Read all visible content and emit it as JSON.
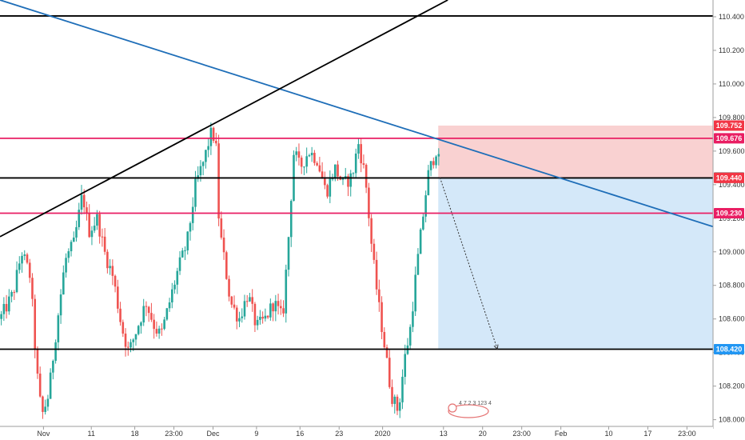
{
  "chart_data": {
    "type": "candlestick",
    "y_range": [
      107.96,
      110.5
    ],
    "x_range": [
      0,
      82
    ],
    "price_ticks": [
      "110.400",
      "110.200",
      "110.000",
      "109.800",
      "109.600",
      "109.400",
      "109.200",
      "109.000",
      "108.800",
      "108.600",
      "108.400",
      "108.200",
      "108.000"
    ],
    "price_tick_values": [
      110.4,
      110.2,
      110.0,
      109.8,
      109.6,
      109.4,
      109.2,
      109.0,
      108.8,
      108.6,
      108.4,
      108.2,
      108.0
    ],
    "time_ticks": [
      {
        "label": "Nov",
        "x": 5
      },
      {
        "label": "11",
        "x": 10.5
      },
      {
        "label": "18",
        "x": 15.5
      },
      {
        "label": "23:00",
        "x": 20
      },
      {
        "label": "Dec",
        "x": 24.5
      },
      {
        "label": "9",
        "x": 29.5
      },
      {
        "label": "16",
        "x": 34.5
      },
      {
        "label": "23",
        "x": 39
      },
      {
        "label": "2020",
        "x": 44
      },
      {
        "label": "13",
        "x": 51
      },
      {
        "label": "20",
        "x": 55.5
      },
      {
        "label": "23:00",
        "x": 60
      },
      {
        "label": "Feb",
        "x": 64.5
      },
      {
        "label": "10",
        "x": 70
      },
      {
        "label": "17",
        "x": 74.5
      },
      {
        "label": "23:00",
        "x": 79
      }
    ],
    "horizontal_lines": [
      {
        "price": 110.405,
        "color": "#000000"
      },
      {
        "price": 109.676,
        "color": "#e91e63"
      },
      {
        "price": 109.44,
        "color": "#000000"
      },
      {
        "price": 109.23,
        "color": "#e91e63"
      },
      {
        "price": 108.42,
        "color": "#000000"
      }
    ],
    "trend_lines": [
      {
        "from": [
          0,
          110.5
        ],
        "to": [
          82,
          109.15
        ],
        "color": "#1e6eb8"
      },
      {
        "from": [
          0,
          109.09
        ],
        "to": [
          51.5,
          110.5
        ],
        "color": "#000000"
      }
    ],
    "position": {
      "entry_x": 50.4,
      "end_x": 82,
      "entry": 109.442,
      "stop": 109.752,
      "target": 108.42,
      "stop_zone_color": "#f8c9c9",
      "target_zone_color": "#cfe5f8",
      "projection_from": [
        50.6,
        109.442
      ],
      "projection_to": [
        57.2,
        108.42
      ]
    },
    "price_tags": [
      {
        "label": "109.752",
        "price": 109.752,
        "color": "#f23645"
      },
      {
        "label": "109.676",
        "price": 109.676,
        "color": "#e91e63"
      },
      {
        "label": "109.442",
        "price": 109.442,
        "color": "#4a4a4a"
      },
      {
        "label": "109.440",
        "price": 109.44,
        "color": "#f23645"
      },
      {
        "label": "109.230",
        "price": 109.23,
        "color": "#e91e63"
      },
      {
        "label": "108.420",
        "price": 108.42,
        "color": "#2196f3"
      }
    ],
    "candle_colors": {
      "up": "#26a69a",
      "down": "#ef5350"
    },
    "path": [
      [
        0,
        108.6
      ],
      [
        1.5,
        108.75
      ],
      [
        2.5,
        109.0
      ],
      [
        3.5,
        108.85
      ],
      [
        4.2,
        108.3
      ],
      [
        4.8,
        108.02
      ],
      [
        5.6,
        108.15
      ],
      [
        6.5,
        108.55
      ],
      [
        7.5,
        108.95
      ],
      [
        8.5,
        109.05
      ],
      [
        9.5,
        109.35
      ],
      [
        10.2,
        109.12
      ],
      [
        11.2,
        109.2
      ],
      [
        12,
        109.0
      ],
      [
        13,
        108.85
      ],
      [
        14,
        108.55
      ],
      [
        14.8,
        108.4
      ],
      [
        15.8,
        108.55
      ],
      [
        16.8,
        108.7
      ],
      [
        17.8,
        108.55
      ],
      [
        18.5,
        108.5
      ],
      [
        19.5,
        108.7
      ],
      [
        20.5,
        108.9
      ],
      [
        21.5,
        109.05
      ],
      [
        22.5,
        109.4
      ],
      [
        23.5,
        109.55
      ],
      [
        24.2,
        109.7
      ],
      [
        24.8,
        109.68
      ],
      [
        25.2,
        109.15
      ],
      [
        25.8,
        108.95
      ],
      [
        26.5,
        108.7
      ],
      [
        27.5,
        108.6
      ],
      [
        28.5,
        108.75
      ],
      [
        29.5,
        108.55
      ],
      [
        30.5,
        108.6
      ],
      [
        31.5,
        108.7
      ],
      [
        32.5,
        108.6
      ],
      [
        33.2,
        109.1
      ],
      [
        33.8,
        109.6
      ],
      [
        34.5,
        109.5
      ],
      [
        35.5,
        109.6
      ],
      [
        36.5,
        109.55
      ],
      [
        37.5,
        109.35
      ],
      [
        38.5,
        109.5
      ],
      [
        39.5,
        109.4
      ],
      [
        40.5,
        109.45
      ],
      [
        41.2,
        109.65
      ],
      [
        42,
        109.45
      ],
      [
        42.8,
        109.0
      ],
      [
        43.5,
        108.7
      ],
      [
        44.2,
        108.45
      ],
      [
        45,
        108.15
      ],
      [
        45.8,
        108.05
      ],
      [
        46.5,
        108.35
      ],
      [
        47.2,
        108.55
      ],
      [
        47.8,
        108.85
      ],
      [
        48.5,
        109.15
      ],
      [
        49.2,
        109.45
      ],
      [
        49.8,
        109.55
      ],
      [
        50.3,
        109.63
      ],
      [
        50.6,
        109.45
      ]
    ],
    "watermark_digits": "4 7 2 3 123 4"
  }
}
